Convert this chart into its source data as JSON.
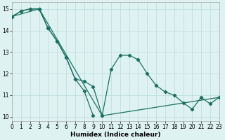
{
  "xlabel": "Humidex (Indice chaleur)",
  "background_color": "#dff2f2",
  "grid_color": "#c0dede",
  "line_color": "#1a7060",
  "xlim": [
    0,
    23
  ],
  "ylim": [
    9.8,
    15.3
  ],
  "xticks": [
    0,
    1,
    2,
    3,
    4,
    5,
    6,
    7,
    8,
    9,
    10,
    11,
    12,
    13,
    14,
    15,
    16,
    17,
    18,
    19,
    20,
    21,
    22,
    23
  ],
  "yticks": [
    10,
    11,
    12,
    13,
    14,
    15
  ],
  "series1_x": [
    0,
    1,
    2,
    3,
    4,
    5,
    6,
    7,
    8,
    9,
    10,
    11,
    12,
    13,
    14,
    15,
    16,
    17,
    18,
    19,
    20,
    21,
    22,
    23
  ],
  "series1_y": [
    14.65,
    14.9,
    15.0,
    15.0,
    14.1,
    13.5,
    12.75,
    11.75,
    11.65,
    11.4,
    10.05,
    12.2,
    12.85,
    12.85,
    12.65,
    12.0,
    11.45,
    11.15,
    11.0,
    10.65,
    10.35,
    10.9,
    10.6,
    10.9
  ],
  "series2_x": [
    0,
    1,
    2,
    3,
    4,
    5,
    6,
    7,
    8,
    9
  ],
  "series2_y": [
    14.65,
    14.9,
    15.0,
    15.0,
    14.1,
    13.5,
    12.75,
    11.75,
    11.2,
    10.05
  ],
  "series3_x": [
    0,
    3,
    10,
    23
  ],
  "series3_y": [
    14.65,
    15.0,
    10.05,
    10.9
  ],
  "marker": "D",
  "markersize": 2.2,
  "linewidth": 0.9,
  "xlabel_fontsize": 6.5,
  "tick_fontsize": 5.5
}
